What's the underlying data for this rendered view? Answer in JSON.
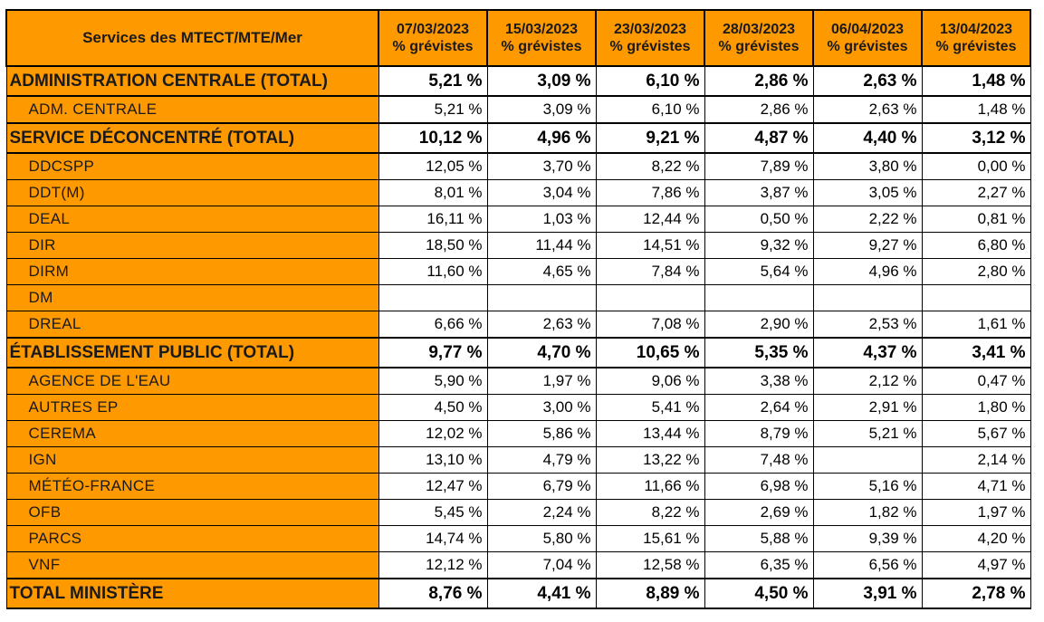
{
  "header": {
    "first_col": "Services des MTECT/MTE/Mer",
    "dates": [
      "07/03/2023",
      "15/03/2023",
      "23/03/2023",
      "28/03/2023",
      "06/04/2023",
      "13/04/2023"
    ],
    "subtitle": "% grévistes"
  },
  "rows": [
    {
      "type": "total",
      "name": "ADMINISTRATION CENTRALE (TOTAL)",
      "values": [
        "5,21 %",
        "3,09 %",
        "6,10 %",
        "2,86 %",
        "2,63 %",
        "1,48 %"
      ]
    },
    {
      "type": "sub",
      "name": "ADM. CENTRALE",
      "values": [
        "5,21 %",
        "3,09 %",
        "6,10 %",
        "2,86 %",
        "2,63 %",
        "1,48 %"
      ]
    },
    {
      "type": "total",
      "name": "SERVICE DÉCONCENTRÉ (TOTAL)",
      "values": [
        "10,12 %",
        "4,96 %",
        "9,21 %",
        "4,87 %",
        "4,40 %",
        "3,12 %"
      ]
    },
    {
      "type": "sub",
      "name": "DDCSPP",
      "values": [
        "12,05 %",
        "3,70 %",
        "8,22 %",
        "7,89 %",
        "3,80 %",
        "0,00 %"
      ]
    },
    {
      "type": "sub",
      "name": "DDT(M)",
      "values": [
        "8,01 %",
        "3,04 %",
        "7,86 %",
        "3,87 %",
        "3,05 %",
        "2,27 %"
      ]
    },
    {
      "type": "sub",
      "name": "DEAL",
      "values": [
        "16,11 %",
        "1,03 %",
        "12,44 %",
        "0,50 %",
        "2,22 %",
        "0,81 %"
      ]
    },
    {
      "type": "sub",
      "name": "DIR",
      "values": [
        "18,50 %",
        "11,44 %",
        "14,51 %",
        "9,32 %",
        "9,27 %",
        "6,80 %"
      ]
    },
    {
      "type": "sub",
      "name": "DIRM",
      "values": [
        "11,60 %",
        "4,65 %",
        "7,84 %",
        "5,64 %",
        "4,96 %",
        "2,80 %"
      ]
    },
    {
      "type": "sub",
      "name": "DM",
      "values": [
        "",
        "",
        "",
        "",
        "",
        ""
      ]
    },
    {
      "type": "sub",
      "name": "DREAL",
      "values": [
        "6,66 %",
        "2,63 %",
        "7,08 %",
        "2,90 %",
        "2,53 %",
        "1,61 %"
      ]
    },
    {
      "type": "total",
      "name": "ÉTABLISSEMENT PUBLIC (TOTAL)",
      "values": [
        "9,77 %",
        "4,70 %",
        "10,65 %",
        "5,35 %",
        "4,37 %",
        "3,41 %"
      ]
    },
    {
      "type": "sub",
      "name": "AGENCE DE L'EAU",
      "values": [
        "5,90 %",
        "1,97 %",
        "9,06 %",
        "3,38 %",
        "2,12 %",
        "0,47 %"
      ]
    },
    {
      "type": "sub",
      "name": "AUTRES EP",
      "values": [
        "4,50 %",
        "3,00 %",
        "5,41 %",
        "2,64 %",
        "2,91 %",
        "1,80 %"
      ]
    },
    {
      "type": "sub",
      "name": "CEREMA",
      "values": [
        "12,02 %",
        "5,86 %",
        "13,44 %",
        "8,79 %",
        "5,21 %",
        "5,67 %"
      ]
    },
    {
      "type": "sub",
      "name": "IGN",
      "values": [
        "13,10 %",
        "4,79 %",
        "13,22 %",
        "7,48 %",
        "",
        "2,14 %"
      ]
    },
    {
      "type": "sub",
      "name": "MÉTÉO-FRANCE",
      "values": [
        "12,47 %",
        "6,79 %",
        "11,66 %",
        "6,98 %",
        "5,16 %",
        "4,71 %"
      ]
    },
    {
      "type": "sub",
      "name": "OFB",
      "values": [
        "5,45 %",
        "2,24 %",
        "8,22 %",
        "2,69 %",
        "1,82 %",
        "1,97 %"
      ]
    },
    {
      "type": "sub",
      "name": "PARCS",
      "values": [
        "14,74 %",
        "5,80 %",
        "15,61 %",
        "5,88 %",
        "9,39 %",
        "4,20 %"
      ]
    },
    {
      "type": "sub",
      "name": "VNF",
      "values": [
        "12,12 %",
        "7,04 %",
        "12,58 %",
        "6,35 %",
        "6,56 %",
        "4,97 %"
      ]
    },
    {
      "type": "final",
      "name": "TOTAL MINISTÈRE",
      "values": [
        "8,76 %",
        "4,41 %",
        "8,89 %",
        "4,50 %",
        "3,91 %",
        "2,78 %"
      ]
    }
  ]
}
